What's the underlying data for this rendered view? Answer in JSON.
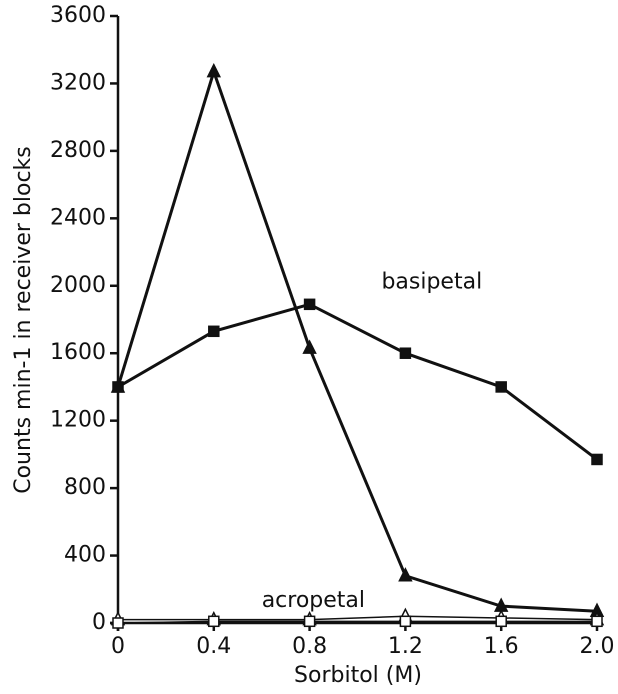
{
  "chart_data": {
    "type": "line",
    "x_label": "Sorbitol (M)",
    "y_label": "Counts min-1 in receiver blocks",
    "annotations": [
      {
        "text": "basipetal",
        "x": 1.1,
        "y": 2020
      },
      {
        "text": "acropetal",
        "x": 0.6,
        "y": 130
      }
    ],
    "x": [
      0,
      0.4,
      0.8,
      1.2,
      1.6,
      2
    ],
    "series": [
      {
        "color": "#111111",
        "marker": "triangle",
        "filled": true,
        "values": [
          1400,
          3270,
          1630,
          280,
          100,
          70
        ]
      },
      {
        "color": "#111111",
        "marker": "square",
        "filled": true,
        "values": [
          1400,
          1730,
          1890,
          1600,
          1400,
          970
        ]
      },
      {
        "color": "#111111",
        "marker": "triangle",
        "filled": false,
        "values": [
          20,
          20,
          20,
          40,
          30,
          20
        ]
      },
      {
        "color": "#111111",
        "marker": "square",
        "filled": false,
        "values": [
          0,
          10,
          10,
          10,
          10,
          10
        ]
      }
    ],
    "xlim": [
      0,
      2
    ],
    "ylim": [
      0,
      3600
    ],
    "xticks": [
      0,
      0.4,
      0.8,
      1.2,
      1.6,
      {
        "value": 2,
        "label": "2.0"
      }
    ],
    "yticks": [
      0,
      400,
      800,
      1200,
      1600,
      2000,
      2400,
      2800,
      3200,
      3600
    ]
  }
}
